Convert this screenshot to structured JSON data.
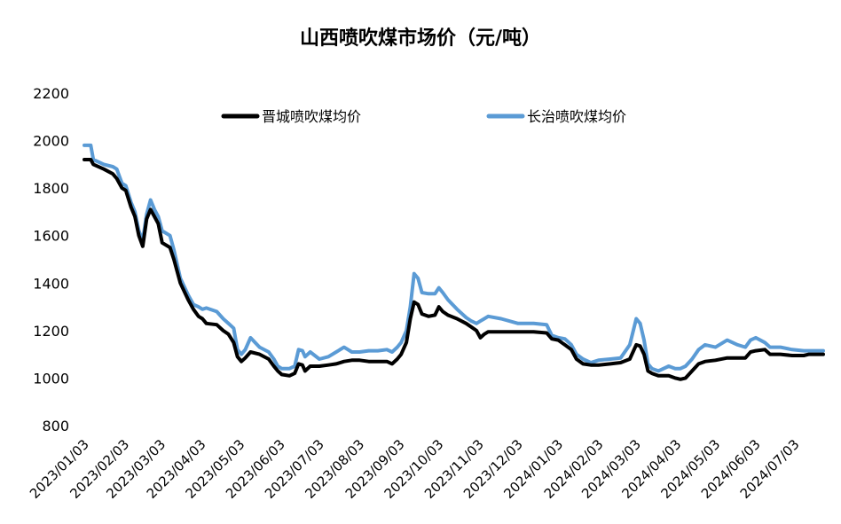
{
  "chart_data": {
    "type": "line",
    "title": "山西喷吹煤市场价（元/吨）",
    "xlabel": "",
    "ylabel": "",
    "ylim": [
      800,
      2200
    ],
    "yticks": [
      800,
      1000,
      1200,
      1400,
      1600,
      1800,
      2000,
      2200
    ],
    "x_tick_labels": [
      "2023/01/03",
      "2023/02/03",
      "2023/03/03",
      "2023/04/03",
      "2023/05/03",
      "2023/06/03",
      "2023/07/03",
      "2023/08/03",
      "2023/09/03",
      "2023/10/03",
      "2023/11/03",
      "2023/12/03",
      "2024/01/03",
      "2024/02/03",
      "2024/03/03",
      "2024/04/03",
      "2024/05/03",
      "2024/06/03",
      "2024/07/03"
    ],
    "xlim": [
      "2023-01-03",
      "2024-07-25"
    ],
    "grid": false,
    "legend_position": "top",
    "series": [
      {
        "name": "晋城喷吹煤均价",
        "color": "#000000",
        "points": [
          [
            "2023-01-03",
            1920
          ],
          [
            "2023-01-08",
            1920
          ],
          [
            "2023-01-10",
            1900
          ],
          [
            "2023-01-18",
            1880
          ],
          [
            "2023-01-25",
            1860
          ],
          [
            "2023-01-28",
            1840
          ],
          [
            "2023-02-01",
            1800
          ],
          [
            "2023-02-04",
            1790
          ],
          [
            "2023-02-08",
            1720
          ],
          [
            "2023-02-11",
            1680
          ],
          [
            "2023-02-14",
            1600
          ],
          [
            "2023-02-17",
            1555
          ],
          [
            "2023-02-20",
            1670
          ],
          [
            "2023-02-23",
            1710
          ],
          [
            "2023-02-26",
            1680
          ],
          [
            "2023-03-01",
            1650
          ],
          [
            "2023-03-04",
            1570
          ],
          [
            "2023-03-10",
            1550
          ],
          [
            "2023-03-13",
            1500
          ],
          [
            "2023-03-18",
            1400
          ],
          [
            "2023-03-24",
            1330
          ],
          [
            "2023-03-28",
            1290
          ],
          [
            "2023-04-01",
            1260
          ],
          [
            "2023-04-04",
            1250
          ],
          [
            "2023-04-07",
            1230
          ],
          [
            "2023-04-15",
            1225
          ],
          [
            "2023-04-20",
            1200
          ],
          [
            "2023-04-24",
            1185
          ],
          [
            "2023-04-28",
            1150
          ],
          [
            "2023-05-01",
            1090
          ],
          [
            "2023-05-04",
            1070
          ],
          [
            "2023-05-07",
            1085
          ],
          [
            "2023-05-11",
            1110
          ],
          [
            "2023-05-18",
            1100
          ],
          [
            "2023-05-25",
            1080
          ],
          [
            "2023-05-29",
            1050
          ],
          [
            "2023-06-01",
            1030
          ],
          [
            "2023-06-04",
            1015
          ],
          [
            "2023-06-10",
            1010
          ],
          [
            "2023-06-14",
            1020
          ],
          [
            "2023-06-17",
            1060
          ],
          [
            "2023-06-20",
            1055
          ],
          [
            "2023-06-22",
            1030
          ],
          [
            "2023-06-26",
            1050
          ],
          [
            "2023-07-03",
            1050
          ],
          [
            "2023-07-10",
            1055
          ],
          [
            "2023-07-16",
            1060
          ],
          [
            "2023-07-22",
            1070
          ],
          [
            "2023-07-28",
            1075
          ],
          [
            "2023-08-03",
            1075
          ],
          [
            "2023-08-10",
            1070
          ],
          [
            "2023-08-17",
            1070
          ],
          [
            "2023-08-24",
            1070
          ],
          [
            "2023-08-28",
            1060
          ],
          [
            "2023-09-01",
            1080
          ],
          [
            "2023-09-04",
            1100
          ],
          [
            "2023-09-08",
            1150
          ],
          [
            "2023-09-11",
            1250
          ],
          [
            "2023-09-14",
            1320
          ],
          [
            "2023-09-17",
            1310
          ],
          [
            "2023-09-20",
            1270
          ],
          [
            "2023-09-25",
            1260
          ],
          [
            "2023-09-30",
            1265
          ],
          [
            "2023-10-03",
            1300
          ],
          [
            "2023-10-06",
            1280
          ],
          [
            "2023-10-10",
            1265
          ],
          [
            "2023-10-17",
            1250
          ],
          [
            "2023-10-24",
            1230
          ],
          [
            "2023-10-28",
            1215
          ],
          [
            "2023-11-01",
            1200
          ],
          [
            "2023-11-04",
            1170
          ],
          [
            "2023-11-07",
            1185
          ],
          [
            "2023-11-10",
            1195
          ],
          [
            "2023-11-20",
            1195
          ],
          [
            "2023-12-03",
            1195
          ],
          [
            "2023-12-15",
            1195
          ],
          [
            "2023-12-25",
            1190
          ],
          [
            "2023-12-29",
            1165
          ],
          [
            "2024-01-03",
            1160
          ],
          [
            "2024-01-08",
            1140
          ],
          [
            "2024-01-13",
            1120
          ],
          [
            "2024-01-17",
            1080
          ],
          [
            "2024-01-22",
            1060
          ],
          [
            "2024-01-28",
            1055
          ],
          [
            "2024-02-03",
            1055
          ],
          [
            "2024-02-12",
            1060
          ],
          [
            "2024-02-20",
            1065
          ],
          [
            "2024-02-27",
            1080
          ],
          [
            "2024-03-03",
            1140
          ],
          [
            "2024-03-06",
            1135
          ],
          [
            "2024-03-09",
            1100
          ],
          [
            "2024-03-12",
            1030
          ],
          [
            "2024-03-15",
            1020
          ],
          [
            "2024-03-20",
            1010
          ],
          [
            "2024-03-28",
            1010
          ],
          [
            "2024-04-02",
            1000
          ],
          [
            "2024-04-06",
            995
          ],
          [
            "2024-04-10",
            1000
          ],
          [
            "2024-04-15",
            1030
          ],
          [
            "2024-04-20",
            1060
          ],
          [
            "2024-04-25",
            1070
          ],
          [
            "2024-05-03",
            1075
          ],
          [
            "2024-05-12",
            1085
          ],
          [
            "2024-05-20",
            1085
          ],
          [
            "2024-05-26",
            1085
          ],
          [
            "2024-05-30",
            1110
          ],
          [
            "2024-06-03",
            1115
          ],
          [
            "2024-06-10",
            1120
          ],
          [
            "2024-06-14",
            1100
          ],
          [
            "2024-06-22",
            1100
          ],
          [
            "2024-07-01",
            1095
          ],
          [
            "2024-07-10",
            1095
          ],
          [
            "2024-07-14",
            1100
          ],
          [
            "2024-07-25",
            1100
          ]
        ]
      },
      {
        "name": "长治喷吹煤均价",
        "color": "#5b9bd5",
        "points": [
          [
            "2023-01-03",
            1980
          ],
          [
            "2023-01-08",
            1980
          ],
          [
            "2023-01-10",
            1920
          ],
          [
            "2023-01-18",
            1900
          ],
          [
            "2023-01-25",
            1890
          ],
          [
            "2023-01-28",
            1880
          ],
          [
            "2023-02-01",
            1820
          ],
          [
            "2023-02-04",
            1810
          ],
          [
            "2023-02-08",
            1740
          ],
          [
            "2023-02-11",
            1700
          ],
          [
            "2023-02-14",
            1620
          ],
          [
            "2023-02-17",
            1580
          ],
          [
            "2023-02-20",
            1690
          ],
          [
            "2023-02-23",
            1750
          ],
          [
            "2023-02-26",
            1710
          ],
          [
            "2023-03-01",
            1680
          ],
          [
            "2023-03-04",
            1620
          ],
          [
            "2023-03-10",
            1600
          ],
          [
            "2023-03-13",
            1540
          ],
          [
            "2023-03-18",
            1420
          ],
          [
            "2023-03-24",
            1350
          ],
          [
            "2023-03-28",
            1310
          ],
          [
            "2023-04-01",
            1300
          ],
          [
            "2023-04-04",
            1290
          ],
          [
            "2023-04-07",
            1295
          ],
          [
            "2023-04-15",
            1280
          ],
          [
            "2023-04-20",
            1250
          ],
          [
            "2023-04-24",
            1230
          ],
          [
            "2023-04-28",
            1210
          ],
          [
            "2023-05-01",
            1120
          ],
          [
            "2023-05-04",
            1100
          ],
          [
            "2023-05-07",
            1120
          ],
          [
            "2023-05-11",
            1170
          ],
          [
            "2023-05-18",
            1130
          ],
          [
            "2023-05-25",
            1110
          ],
          [
            "2023-05-29",
            1080
          ],
          [
            "2023-06-01",
            1050
          ],
          [
            "2023-06-04",
            1040
          ],
          [
            "2023-06-10",
            1040
          ],
          [
            "2023-06-14",
            1050
          ],
          [
            "2023-06-17",
            1120
          ],
          [
            "2023-06-20",
            1115
          ],
          [
            "2023-06-22",
            1090
          ],
          [
            "2023-06-26",
            1110
          ],
          [
            "2023-07-03",
            1080
          ],
          [
            "2023-07-10",
            1090
          ],
          [
            "2023-07-16",
            1110
          ],
          [
            "2023-07-22",
            1130
          ],
          [
            "2023-07-28",
            1110
          ],
          [
            "2023-08-03",
            1110
          ],
          [
            "2023-08-10",
            1115
          ],
          [
            "2023-08-17",
            1115
          ],
          [
            "2023-08-24",
            1120
          ],
          [
            "2023-08-28",
            1110
          ],
          [
            "2023-09-01",
            1130
          ],
          [
            "2023-09-04",
            1150
          ],
          [
            "2023-09-08",
            1200
          ],
          [
            "2023-09-11",
            1300
          ],
          [
            "2023-09-14",
            1440
          ],
          [
            "2023-09-17",
            1420
          ],
          [
            "2023-09-20",
            1360
          ],
          [
            "2023-09-25",
            1355
          ],
          [
            "2023-09-30",
            1355
          ],
          [
            "2023-10-03",
            1380
          ],
          [
            "2023-10-06",
            1360
          ],
          [
            "2023-10-10",
            1330
          ],
          [
            "2023-10-17",
            1290
          ],
          [
            "2023-10-24",
            1255
          ],
          [
            "2023-10-28",
            1240
          ],
          [
            "2023-11-01",
            1230
          ],
          [
            "2023-11-04",
            1240
          ],
          [
            "2023-11-07",
            1250
          ],
          [
            "2023-11-10",
            1260
          ],
          [
            "2023-11-20",
            1250
          ],
          [
            "2023-12-03",
            1230
          ],
          [
            "2023-12-15",
            1230
          ],
          [
            "2023-12-25",
            1225
          ],
          [
            "2023-12-29",
            1180
          ],
          [
            "2024-01-03",
            1170
          ],
          [
            "2024-01-08",
            1165
          ],
          [
            "2024-01-13",
            1140
          ],
          [
            "2024-01-17",
            1100
          ],
          [
            "2024-01-22",
            1080
          ],
          [
            "2024-01-28",
            1065
          ],
          [
            "2024-02-03",
            1075
          ],
          [
            "2024-02-12",
            1080
          ],
          [
            "2024-02-20",
            1085
          ],
          [
            "2024-02-27",
            1140
          ],
          [
            "2024-03-03",
            1250
          ],
          [
            "2024-03-06",
            1230
          ],
          [
            "2024-03-09",
            1160
          ],
          [
            "2024-03-12",
            1060
          ],
          [
            "2024-03-15",
            1040
          ],
          [
            "2024-03-20",
            1030
          ],
          [
            "2024-03-28",
            1050
          ],
          [
            "2024-04-02",
            1040
          ],
          [
            "2024-04-06",
            1040
          ],
          [
            "2024-04-10",
            1050
          ],
          [
            "2024-04-15",
            1080
          ],
          [
            "2024-04-20",
            1120
          ],
          [
            "2024-04-25",
            1140
          ],
          [
            "2024-05-03",
            1130
          ],
          [
            "2024-05-12",
            1160
          ],
          [
            "2024-05-20",
            1140
          ],
          [
            "2024-05-26",
            1130
          ],
          [
            "2024-05-30",
            1160
          ],
          [
            "2024-06-03",
            1170
          ],
          [
            "2024-06-10",
            1150
          ],
          [
            "2024-06-14",
            1130
          ],
          [
            "2024-06-22",
            1130
          ],
          [
            "2024-07-01",
            1120
          ],
          [
            "2024-07-10",
            1115
          ],
          [
            "2024-07-14",
            1115
          ],
          [
            "2024-07-25",
            1115
          ]
        ]
      }
    ]
  }
}
